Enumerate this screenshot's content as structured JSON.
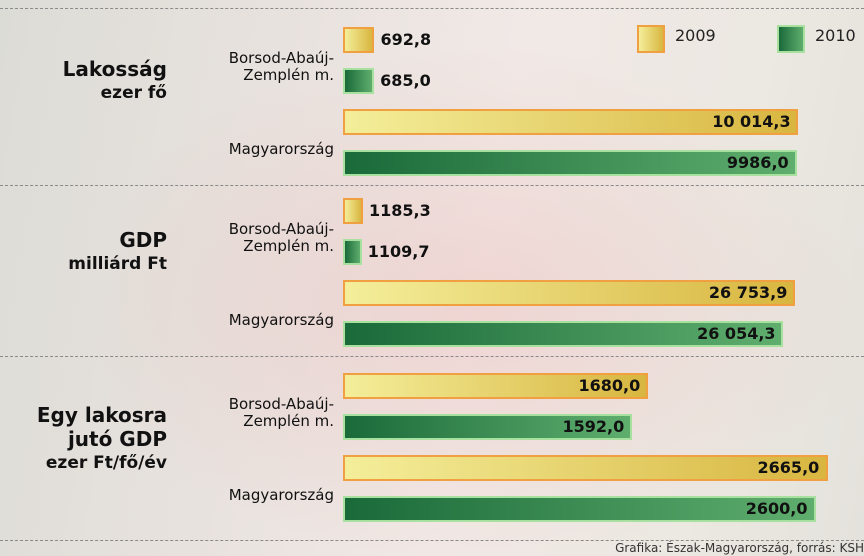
{
  "chart_data": [
    {
      "type": "bar",
      "title": "Lakosság",
      "subtitle": "ezer fő",
      "categories": [
        "Borsod-Abaúj-Zemplén m.",
        "Magyarország"
      ],
      "series": [
        {
          "name": "2009",
          "color": "#d8b640",
          "values": [
            692.8,
            10014.3
          ],
          "value_labels": [
            "692,8",
            "10 014,3"
          ]
        },
        {
          "name": "2010",
          "color": "#2a7a48",
          "values": [
            685.0,
            9986.0
          ],
          "value_labels": [
            "685,0",
            "9986,0"
          ]
        }
      ],
      "xlim": [
        0,
        11000
      ]
    },
    {
      "type": "bar",
      "title": "GDP",
      "subtitle": "milliárd Ft",
      "categories": [
        "Borsod-Abaúj-Zemplén m.",
        "Magyarország"
      ],
      "series": [
        {
          "name": "2009",
          "color": "#d8b640",
          "values": [
            1185.3,
            26753.9
          ],
          "value_labels": [
            "1185,3",
            "26 753,9"
          ]
        },
        {
          "name": "2010",
          "color": "#2a7a48",
          "values": [
            1109.7,
            26054.3
          ],
          "value_labels": [
            "1109,7",
            "26 054,3"
          ]
        }
      ],
      "xlim": [
        0,
        29600
      ]
    },
    {
      "type": "bar",
      "title": "Egy lakosra jutó GDP",
      "subtitle": "ezer Ft/fő/év",
      "categories": [
        "Borsod-Abaúj-Zemplén m.",
        "Magyarország"
      ],
      "series": [
        {
          "name": "2009",
          "color": "#d8b640",
          "values": [
            1680.0,
            2665.0
          ],
          "value_labels": [
            "1680,0",
            "2665,0"
          ]
        },
        {
          "name": "2010",
          "color": "#2a7a48",
          "values": [
            1592.0,
            2600.0
          ],
          "value_labels": [
            "1592,0",
            "2600,0"
          ]
        }
      ],
      "xlim": [
        0,
        2750
      ]
    }
  ],
  "source": "Grafika: Észak-Magyarország, forrás: KSH"
}
